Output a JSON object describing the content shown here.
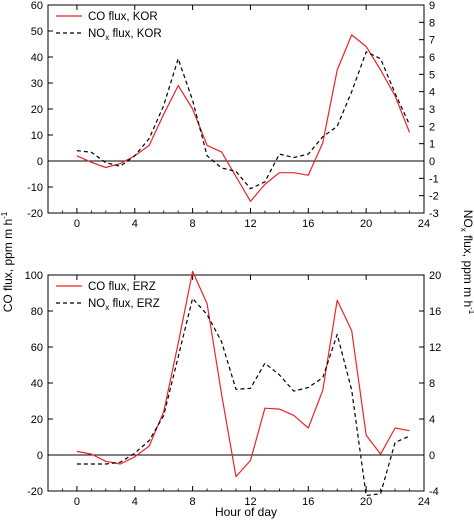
{
  "figure": {
    "shared_ylabel_left": "CO flux, ppm m h",
    "shared_ylabel_left_sup": "-1",
    "shared_ylabel_right": "NO",
    "shared_ylabel_right_sub": "x",
    "shared_ylabel_right_tail": " flux, ppm m h",
    "shared_ylabel_right_sup": "-1",
    "xlabel": "Hour of day"
  },
  "colors": {
    "co_line": "#e8252b",
    "nox_line": "#000000",
    "zero_line": "#000000"
  },
  "chart_data": [
    {
      "type": "line",
      "panel": "top",
      "xlim": [
        -2,
        24
      ],
      "xticks": [
        0,
        4,
        8,
        12,
        16,
        20,
        24
      ],
      "ylim_left": [
        -20,
        60
      ],
      "yticks_left": [
        -20,
        -10,
        0,
        10,
        20,
        30,
        40,
        50,
        60
      ],
      "ylim_right": [
        -3,
        9
      ],
      "yticks_right": [
        -3,
        -2,
        -1,
        0,
        1,
        2,
        3,
        4,
        5,
        6,
        7,
        8,
        9
      ],
      "zero_line": true,
      "legend_position": "top-left",
      "series": [
        {
          "name": "CO  flux, KOR",
          "legend_parts": [
            "CO  flux, KOR"
          ],
          "axis": "left",
          "style": "solid",
          "x": [
            0,
            1,
            2,
            3,
            4,
            5,
            6,
            7,
            8,
            9,
            10,
            11,
            12,
            13,
            14,
            15,
            16,
            17,
            18,
            19,
            20,
            21,
            22,
            23
          ],
          "values": [
            2,
            -0.5,
            -2.5,
            -1,
            2,
            6,
            18,
            29,
            20,
            6,
            3.5,
            -6,
            -15.5,
            -9,
            -4.5,
            -4.5,
            -5.5,
            7,
            35,
            48.5,
            44,
            35,
            25,
            11
          ]
        },
        {
          "name": "NOx flux, KOR",
          "legend_parts": [
            "NO",
            "x",
            " flux, KOR"
          ],
          "axis": "right",
          "style": "dashed",
          "x": [
            0,
            1,
            2,
            3,
            4,
            5,
            6,
            7,
            8,
            9,
            10,
            11,
            12,
            13,
            14,
            15,
            16,
            17,
            18,
            19,
            20,
            21,
            22,
            23
          ],
          "values": [
            0.6,
            0.5,
            -0.1,
            -0.3,
            0.3,
            1.3,
            3.2,
            5.9,
            3.5,
            0.3,
            -0.4,
            -0.6,
            -1.6,
            -1.2,
            0.4,
            0.2,
            0.4,
            1.4,
            2.0,
            4.0,
            6.3,
            5.9,
            3.9,
            2.1
          ]
        }
      ]
    },
    {
      "type": "line",
      "panel": "bottom",
      "xlim": [
        -2,
        24
      ],
      "xticks": [
        0,
        4,
        8,
        12,
        16,
        20,
        24
      ],
      "ylim_left": [
        -20,
        100
      ],
      "yticks_left": [
        -20,
        0,
        20,
        40,
        60,
        80,
        100
      ],
      "ylim_right": [
        -4,
        20
      ],
      "yticks_right": [
        -4,
        0,
        4,
        8,
        12,
        16,
        20
      ],
      "zero_line": true,
      "legend_position": "top-left",
      "series": [
        {
          "name": "CO  flux, ERZ",
          "legend_parts": [
            "CO  flux, ERZ"
          ],
          "axis": "left",
          "style": "solid",
          "x": [
            0,
            1,
            2,
            3,
            4,
            5,
            6,
            7,
            8,
            9,
            10,
            11,
            12,
            13,
            14,
            15,
            16,
            17,
            18,
            19,
            20,
            21,
            22,
            23
          ],
          "values": [
            2,
            0.5,
            -3.5,
            -5,
            -1,
            5,
            24,
            62,
            102,
            84,
            34,
            -12,
            -3,
            26,
            25.5,
            22,
            15,
            36,
            86,
            69,
            11,
            0.5,
            15,
            13.5
          ]
        },
        {
          "name": "NOx flux, ERZ",
          "legend_parts": [
            "NO",
            "x",
            " flux, ERZ"
          ],
          "axis": "right",
          "style": "dashed",
          "x": [
            0,
            1,
            2,
            3,
            4,
            5,
            6,
            7,
            8,
            9,
            10,
            11,
            12,
            13,
            14,
            15,
            16,
            17,
            18,
            19,
            20,
            21,
            22,
            23
          ],
          "values": [
            -1,
            -1,
            -1,
            -0.8,
            0.2,
            1.6,
            4.4,
            10.9,
            17.4,
            15.6,
            12.6,
            7.3,
            7.4,
            10.2,
            8.9,
            7.1,
            7.5,
            8.6,
            13.4,
            7.2,
            -4.5,
            -4.3,
            1.4,
            2.1
          ]
        }
      ]
    }
  ]
}
